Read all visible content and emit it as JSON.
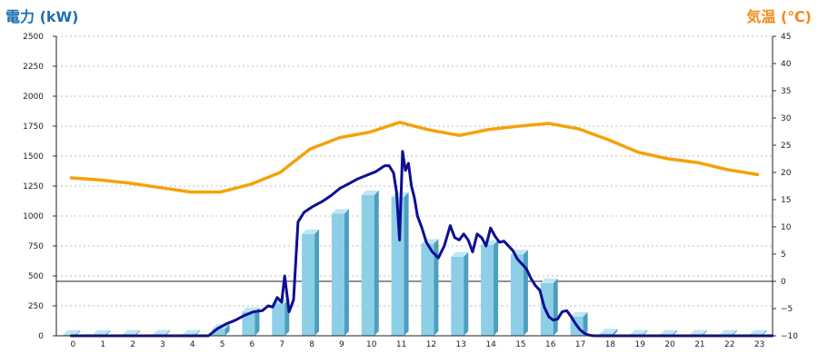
{
  "chart_data": {
    "type": "bar",
    "title_left": "電力 (kW)",
    "title_right": "気温 (℃)",
    "categories": [
      "0",
      "1",
      "2",
      "3",
      "4",
      "5",
      "6",
      "7",
      "8",
      "9",
      "10",
      "11",
      "12",
      "13",
      "14",
      "15",
      "16",
      "17",
      "18",
      "19",
      "20",
      "21",
      "22",
      "23"
    ],
    "ylim": [
      0,
      2500
    ],
    "y_ticks": [
      "0",
      "250",
      "500",
      "750",
      "1000",
      "1250",
      "1500",
      "1750",
      "2000",
      "2250",
      "2500"
    ],
    "y2lim": [
      -10,
      45
    ],
    "y2_ticks": [
      "−10",
      "−5",
      "0",
      "5",
      "10",
      "15",
      "20",
      "25",
      "30",
      "35",
      "40",
      "45"
    ],
    "grid": true,
    "series": [
      {
        "kind": "bar",
        "values": [
          10,
          10,
          10,
          10,
          10,
          60,
          200,
          270,
          850,
          1020,
          1175,
          1160,
          770,
          660,
          760,
          680,
          440,
          160,
          20,
          10,
          10,
          10,
          10,
          10
        ]
      },
      {
        "kind": "line",
        "axis": "right",
        "color": "#f5a10a",
        "x": [
          0,
          1,
          2,
          3,
          4,
          5,
          6,
          7,
          8,
          9,
          10,
          11,
          12,
          13,
          14,
          15,
          16,
          17,
          18,
          19,
          20,
          21,
          22,
          23
        ],
        "values": [
          19,
          18.6,
          18,
          17.2,
          16.4,
          16.4,
          17.8,
          20,
          24.3,
          26.4,
          27.4,
          29.2,
          27.8,
          26.8,
          27.9,
          28.5,
          29,
          28,
          26,
          23.7,
          22.5,
          21.8,
          20.5,
          19.6
        ]
      },
      {
        "kind": "line",
        "axis": "left",
        "color": "#0e0e94",
        "x": [
          0,
          4.6,
          4.9,
          5.2,
          5.5,
          5.8,
          6.1,
          6.4,
          6.6,
          6.75,
          6.9,
          7.05,
          7.15,
          7.3,
          7.45,
          7.6,
          7.8,
          8.1,
          8.4,
          8.7,
          9,
          9.3,
          9.6,
          9.9,
          10.2,
          10.5,
          10.65,
          10.8,
          10.9,
          11.0,
          11.1,
          11.2,
          11.3,
          11.4,
          11.5,
          11.6,
          11.75,
          11.9,
          12.1,
          12.3,
          12.5,
          12.7,
          12.85,
          13.0,
          13.15,
          13.3,
          13.45,
          13.6,
          13.75,
          13.9,
          14.05,
          14.2,
          14.35,
          14.5,
          14.65,
          14.8,
          14.95,
          15.1,
          15.25,
          15.4,
          15.55,
          15.7,
          15.85,
          16.0,
          16.15,
          16.3,
          16.45,
          16.6,
          16.75,
          16.9,
          17.05,
          17.2,
          17.35,
          17.5,
          17.65,
          17.8,
          17.95,
          18.2,
          23.5
        ],
        "values": [
          0,
          0,
          60,
          100,
          130,
          170,
          200,
          210,
          250,
          240,
          320,
          280,
          500,
          200,
          300,
          950,
          1030,
          1080,
          1120,
          1170,
          1230,
          1270,
          1310,
          1340,
          1370,
          1420,
          1420,
          1360,
          1200,
          800,
          1540,
          1380,
          1440,
          1250,
          1150,
          1000,
          900,
          780,
          700,
          650,
          750,
          920,
          820,
          800,
          850,
          800,
          700,
          850,
          820,
          750,
          900,
          830,
          780,
          790,
          750,
          710,
          640,
          600,
          560,
          480,
          420,
          380,
          240,
          160,
          130,
          140,
          200,
          210,
          160,
          100,
          50,
          20,
          5,
          0,
          0,
          0,
          0,
          0,
          0
        ]
      }
    ]
  }
}
